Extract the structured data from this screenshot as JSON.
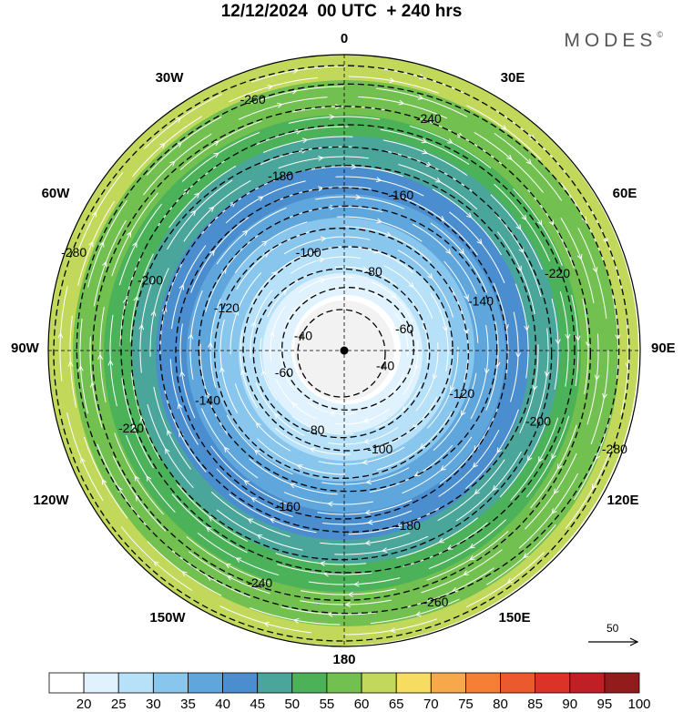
{
  "title": "12/12/2024  00 UTC  + 240 hrs",
  "logo": {
    "text": "MODES",
    "mark": "©"
  },
  "longitude_labels": [
    "0",
    "30E",
    "60E",
    "90E",
    "120E",
    "150E",
    "180",
    "150W",
    "120W",
    "90W",
    "60W",
    "30W"
  ],
  "contour_labels": [
    "-40",
    "-60",
    "-80",
    "-100",
    "-120",
    "-140",
    "-160",
    "-180",
    "-200",
    "-220",
    "-240",
    "-260",
    "-280"
  ],
  "contour_values": [
    -40,
    -60,
    -80,
    -100,
    -120,
    -140,
    -160,
    -180,
    -200,
    -220,
    -240,
    -260,
    -280
  ],
  "reference_vector": {
    "label": "50"
  },
  "colorbar": {
    "labels": [
      "20",
      "25",
      "30",
      "35",
      "40",
      "45",
      "50",
      "55",
      "60",
      "65",
      "70",
      "75",
      "80",
      "85",
      "90",
      "95",
      "100"
    ],
    "colors": [
      "#ffffff",
      "#dff2fd",
      "#b6e1f9",
      "#89c6ee",
      "#5fa6dd",
      "#4b8ecf",
      "#4aa59a",
      "#4cb25a",
      "#72c04f",
      "#c2d85a",
      "#f6dd61",
      "#f7a84a",
      "#f57f35",
      "#ea5a2c",
      "#db3328",
      "#bf1f25",
      "#921b1c"
    ]
  },
  "colors": {
    "pole_region": "#f2f2f2",
    "vector_color": "#ffffff",
    "contour_color": "#000000"
  }
}
